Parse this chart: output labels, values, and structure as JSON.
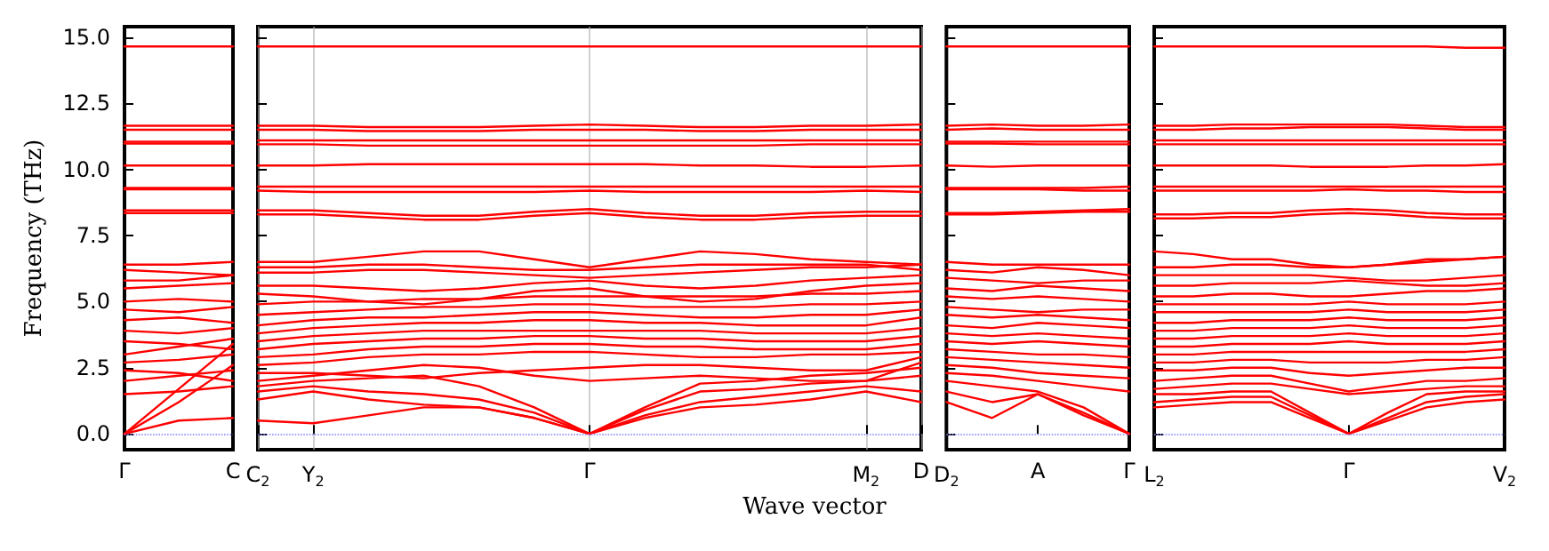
{
  "chart_data": [
    {
      "type": "line",
      "ylabel": "Frequency (THz)",
      "color": "#ff0000",
      "marker": "none",
      "categories": [
        "Γ",
        null,
        "C"
      ],
      "ylim": [
        -0.6,
        15.4
      ],
      "yticks": [
        {
          "value": 0,
          "label": "0.0"
        },
        {
          "value": 2.5,
          "label": "2.5"
        },
        {
          "value": 5,
          "label": "5.0"
        },
        {
          "value": 7.5,
          "label": "7.5"
        },
        {
          "value": 10,
          "label": "10.0"
        },
        {
          "value": 12.5,
          "label": "12.5"
        },
        {
          "value": 15,
          "label": "15.0"
        }
      ],
      "ref_lines": [
        {
          "axis": "y",
          "value": 0,
          "color": "#8080ff",
          "line_style": "dotted"
        }
      ],
      "series": [
        {
          "values": [
            0,
            1.7,
            3.4
          ]
        },
        {
          "values": [
            0,
            1.2,
            2.6
          ]
        },
        {
          "values": [
            0,
            0.5,
            0.6
          ]
        },
        {
          "values": [
            1.5,
            1.6,
            1.8
          ]
        },
        {
          "values": [
            2.0,
            2.2,
            2.4
          ]
        },
        {
          "values": [
            2.4,
            2.3,
            2.0
          ]
        },
        {
          "values": [
            2.7,
            2.8,
            3.0
          ]
        },
        {
          "values": [
            3.0,
            3.3,
            3.6
          ]
        },
        {
          "values": [
            3.5,
            3.4,
            3.2
          ]
        },
        {
          "values": [
            3.9,
            3.8,
            4.0
          ]
        },
        {
          "values": [
            4.3,
            4.4,
            4.2
          ]
        },
        {
          "values": [
            4.7,
            4.6,
            4.8
          ]
        },
        {
          "values": [
            5.0,
            5.1,
            5.0
          ]
        },
        {
          "values": [
            5.5,
            5.6,
            5.7
          ]
        },
        {
          "values": [
            5.8,
            5.8,
            6.0
          ]
        },
        {
          "values": [
            6.2,
            6.1,
            6.0
          ]
        },
        {
          "values": [
            6.4,
            6.4,
            6.5
          ]
        },
        {
          "values": [
            8.45,
            8.45,
            8.45
          ]
        },
        {
          "values": [
            8.35,
            8.35,
            8.35
          ]
        },
        {
          "values": [
            9.3,
            9.3,
            9.3
          ]
        },
        {
          "values": [
            9.25,
            9.25,
            9.25
          ]
        },
        {
          "values": [
            10.15,
            10.15,
            10.15
          ]
        },
        {
          "values": [
            10.98,
            10.98,
            10.98
          ]
        },
        {
          "values": [
            11.05,
            11.05,
            11.05
          ]
        },
        {
          "values": [
            11.5,
            11.5,
            11.5
          ]
        },
        {
          "values": [
            11.65,
            11.65,
            11.65
          ]
        },
        {
          "values": [
            14.65,
            14.65,
            14.65
          ]
        }
      ]
    },
    {
      "type": "line",
      "xlabel": "Wave vector",
      "color": "#ff0000",
      "marker": "none",
      "grid": "x",
      "tick_labels": "x",
      "categories": [
        "C$_{2}$",
        "Y$_{2}$",
        null,
        null,
        null,
        null,
        "Γ",
        null,
        null,
        null,
        null,
        "M$_{2}$",
        "D"
      ],
      "ylim": [
        -0.6,
        15.4
      ],
      "yticks": [
        0,
        2.5,
        5,
        7.5,
        10,
        12.5,
        15
      ],
      "ref_lines": [
        {
          "axis": "y",
          "value": 0,
          "color": "#8080ff",
          "line_style": "dotted"
        }
      ],
      "series": [
        {
          "values": [
            0.5,
            0.4,
            0.7,
            1.0,
            1.0,
            0.6,
            0,
            0.6,
            1.0,
            1.1,
            1.3,
            1.6,
            1.2
          ]
        },
        {
          "values": [
            1.3,
            1.6,
            1.3,
            1.1,
            1.0,
            0.6,
            0,
            0.7,
            1.2,
            1.4,
            1.6,
            1.8,
            1.6
          ]
        },
        {
          "values": [
            1.6,
            1.8,
            1.6,
            1.5,
            1.3,
            0.8,
            0,
            0.9,
            1.6,
            1.7,
            1.9,
            2.0,
            2.2
          ]
        },
        {
          "values": [
            1.8,
            2.0,
            2.1,
            2.2,
            1.8,
            1.0,
            0,
            1.0,
            1.9,
            2.0,
            2.2,
            2.3,
            2.5
          ]
        },
        {
          "values": [
            2.0,
            2.2,
            2.4,
            2.6,
            2.5,
            2.2,
            2.0,
            2.1,
            2.2,
            2.1,
            2.0,
            2.0,
            2.7
          ]
        },
        {
          "values": [
            2.3,
            2.3,
            2.2,
            2.1,
            2.3,
            2.4,
            2.5,
            2.6,
            2.6,
            2.5,
            2.4,
            2.4,
            2.9
          ]
        },
        {
          "values": [
            2.6,
            2.7,
            2.9,
            3.0,
            3.0,
            3.1,
            3.1,
            3.0,
            2.9,
            2.9,
            3.0,
            3.0,
            3.1
          ]
        },
        {
          "values": [
            2.9,
            3.0,
            3.2,
            3.3,
            3.3,
            3.4,
            3.4,
            3.3,
            3.3,
            3.2,
            3.2,
            3.2,
            3.4
          ]
        },
        {
          "values": [
            3.2,
            3.4,
            3.5,
            3.6,
            3.6,
            3.7,
            3.7,
            3.6,
            3.6,
            3.5,
            3.5,
            3.5,
            3.7
          ]
        },
        {
          "values": [
            3.5,
            3.7,
            3.8,
            3.9,
            3.9,
            3.9,
            3.9,
            3.9,
            3.9,
            3.8,
            3.8,
            3.8,
            4.0
          ]
        },
        {
          "values": [
            3.8,
            4.0,
            4.1,
            4.2,
            4.2,
            4.3,
            4.3,
            4.2,
            4.2,
            4.1,
            4.1,
            4.1,
            4.4
          ]
        },
        {
          "values": [
            4.1,
            4.3,
            4.4,
            4.4,
            4.5,
            4.6,
            4.6,
            4.5,
            4.4,
            4.4,
            4.5,
            4.5,
            4.7
          ]
        },
        {
          "values": [
            4.5,
            4.6,
            4.7,
            4.8,
            4.8,
            4.9,
            4.9,
            4.8,
            4.8,
            4.8,
            4.9,
            4.9,
            5.0
          ]
        },
        {
          "values": [
            4.9,
            5.0,
            5.0,
            5.1,
            5.1,
            5.2,
            5.2,
            5.2,
            5.2,
            5.2,
            5.3,
            5.3,
            5.4
          ]
        },
        {
          "values": [
            5.3,
            5.2,
            5.0,
            4.9,
            5.1,
            5.4,
            5.5,
            5.2,
            5.0,
            5.1,
            5.4,
            5.6,
            5.7
          ]
        },
        {
          "values": [
            5.6,
            5.6,
            5.5,
            5.4,
            5.5,
            5.7,
            5.8,
            5.6,
            5.5,
            5.6,
            5.8,
            5.9,
            6.0
          ]
        },
        {
          "values": [
            6.1,
            6.1,
            6.2,
            6.2,
            6.1,
            6.0,
            5.9,
            6.0,
            6.1,
            6.2,
            6.3,
            6.3,
            6.4
          ]
        },
        {
          "values": [
            6.3,
            6.3,
            6.4,
            6.4,
            6.3,
            6.2,
            6.2,
            6.3,
            6.4,
            6.4,
            6.4,
            6.4,
            6.2
          ]
        },
        {
          "values": [
            6.5,
            6.5,
            6.7,
            6.9,
            6.9,
            6.6,
            6.3,
            6.6,
            6.9,
            6.8,
            6.6,
            6.5,
            6.4
          ]
        },
        {
          "values": [
            8.45,
            8.45,
            8.35,
            8.25,
            8.25,
            8.4,
            8.5,
            8.35,
            8.25,
            8.25,
            8.35,
            8.4,
            8.4
          ]
        },
        {
          "values": [
            8.3,
            8.3,
            8.2,
            8.1,
            8.1,
            8.25,
            8.35,
            8.2,
            8.1,
            8.1,
            8.2,
            8.25,
            8.25
          ]
        },
        {
          "values": [
            9.35,
            9.35,
            9.35,
            9.35,
            9.35,
            9.35,
            9.35,
            9.35,
            9.35,
            9.35,
            9.35,
            9.35,
            9.35
          ]
        },
        {
          "values": [
            9.2,
            9.15,
            9.15,
            9.15,
            9.15,
            9.15,
            9.2,
            9.15,
            9.15,
            9.15,
            9.15,
            9.2,
            9.15
          ]
        },
        {
          "values": [
            10.15,
            10.15,
            10.2,
            10.2,
            10.2,
            10.2,
            10.2,
            10.2,
            10.15,
            10.15,
            10.1,
            10.1,
            10.15
          ]
        },
        {
          "values": [
            10.95,
            10.95,
            10.9,
            10.9,
            10.9,
            10.9,
            10.9,
            10.9,
            10.9,
            10.9,
            10.95,
            10.95,
            10.95
          ]
        },
        {
          "values": [
            11.1,
            11.1,
            11.1,
            11.1,
            11.1,
            11.1,
            11.1,
            11.1,
            11.1,
            11.1,
            11.1,
            11.1,
            11.1
          ]
        },
        {
          "values": [
            11.5,
            11.5,
            11.45,
            11.45,
            11.45,
            11.5,
            11.5,
            11.5,
            11.45,
            11.45,
            11.5,
            11.5,
            11.5
          ]
        },
        {
          "values": [
            11.65,
            11.65,
            11.6,
            11.6,
            11.6,
            11.65,
            11.7,
            11.65,
            11.6,
            11.6,
            11.65,
            11.65,
            11.7
          ]
        },
        {
          "values": [
            14.65,
            14.65,
            14.65,
            14.65,
            14.65,
            14.65,
            14.65,
            14.65,
            14.65,
            14.65,
            14.65,
            14.65,
            14.65
          ]
        }
      ]
    },
    {
      "type": "line",
      "color": "#ff0000",
      "marker": "none",
      "tick_labels": "x",
      "categories": [
        "D$_{2}$",
        null,
        "A",
        null,
        "Γ"
      ],
      "ylim": [
        -0.6,
        15.4
      ],
      "yticks": [
        0,
        2.5,
        5,
        7.5,
        10,
        12.5,
        15
      ],
      "ref_lines": [
        {
          "axis": "y",
          "value": 0,
          "color": "#8080ff",
          "line_style": "dotted"
        }
      ],
      "series": [
        {
          "values": [
            1.2,
            0.6,
            1.5,
            0.7,
            0
          ]
        },
        {
          "values": [
            1.6,
            1.2,
            1.5,
            0.8,
            0
          ]
        },
        {
          "values": [
            2.0,
            1.8,
            1.6,
            1.0,
            0
          ]
        },
        {
          "values": [
            2.3,
            2.2,
            2.0,
            1.8,
            1.6
          ]
        },
        {
          "values": [
            2.6,
            2.5,
            2.3,
            2.2,
            2.1
          ]
        },
        {
          "values": [
            2.9,
            2.8,
            2.7,
            2.6,
            2.5
          ]
        },
        {
          "values": [
            3.2,
            3.1,
            3.0,
            3.0,
            2.9
          ]
        },
        {
          "values": [
            3.5,
            3.4,
            3.5,
            3.4,
            3.3
          ]
        },
        {
          "values": [
            3.8,
            3.7,
            3.8,
            3.7,
            3.6
          ]
        },
        {
          "values": [
            4.1,
            4.0,
            4.2,
            4.1,
            4.0
          ]
        },
        {
          "values": [
            4.5,
            4.4,
            4.5,
            4.4,
            4.3
          ]
        },
        {
          "values": [
            4.8,
            4.7,
            4.6,
            4.7,
            4.7
          ]
        },
        {
          "values": [
            5.2,
            5.1,
            5.2,
            5.1,
            5.0
          ]
        },
        {
          "values": [
            5.5,
            5.4,
            5.6,
            5.5,
            5.4
          ]
        },
        {
          "values": [
            5.9,
            5.8,
            5.7,
            5.8,
            5.8
          ]
        },
        {
          "values": [
            6.2,
            6.1,
            6.3,
            6.2,
            6.0
          ]
        },
        {
          "values": [
            6.5,
            6.4,
            6.4,
            6.4,
            6.4
          ]
        },
        {
          "values": [
            8.35,
            8.35,
            8.4,
            8.45,
            8.5
          ]
        },
        {
          "values": [
            8.3,
            8.3,
            8.35,
            8.4,
            8.4
          ]
        },
        {
          "values": [
            9.3,
            9.3,
            9.3,
            9.3,
            9.35
          ]
        },
        {
          "values": [
            9.25,
            9.25,
            9.25,
            9.2,
            9.2
          ]
        },
        {
          "values": [
            10.15,
            10.1,
            10.15,
            10.15,
            10.15
          ]
        },
        {
          "values": [
            10.98,
            10.98,
            10.95,
            10.95,
            10.95
          ]
        },
        {
          "values": [
            11.05,
            11.05,
            11.05,
            11.05,
            11.05
          ]
        },
        {
          "values": [
            11.5,
            11.55,
            11.5,
            11.5,
            11.5
          ]
        },
        {
          "values": [
            11.65,
            11.7,
            11.65,
            11.65,
            11.7
          ]
        },
        {
          "values": [
            14.65,
            14.65,
            14.65,
            14.65,
            14.65
          ]
        }
      ]
    },
    {
      "type": "line",
      "color": "#ff0000",
      "marker": "none",
      "tick_labels": "x",
      "categories": [
        "L$_{2}$",
        null,
        null,
        null,
        null,
        "Γ",
        null,
        null,
        null,
        "V$_{2}$"
      ],
      "ylim": [
        -0.6,
        15.4
      ],
      "yticks": [
        0,
        2.5,
        5,
        7.5,
        10,
        12.5,
        15
      ],
      "ref_lines": [
        {
          "axis": "y",
          "value": 0,
          "color": "#8080ff",
          "line_style": "dotted"
        }
      ],
      "series": [
        {
          "values": [
            1.0,
            1.1,
            1.2,
            1.2,
            0.6,
            0,
            0.5,
            1.0,
            1.2,
            1.3
          ]
        },
        {
          "values": [
            1.2,
            1.3,
            1.4,
            1.4,
            0.7,
            0,
            0.6,
            1.2,
            1.4,
            1.5
          ]
        },
        {
          "values": [
            1.5,
            1.5,
            1.6,
            1.6,
            0.8,
            0,
            0.8,
            1.5,
            1.6,
            1.6
          ]
        },
        {
          "values": [
            1.7,
            1.8,
            1.9,
            1.9,
            1.7,
            1.5,
            1.6,
            1.7,
            1.8,
            1.8
          ]
        },
        {
          "values": [
            2.0,
            2.1,
            2.2,
            2.2,
            1.9,
            1.6,
            1.8,
            2.0,
            2.0,
            2.1
          ]
        },
        {
          "values": [
            2.4,
            2.4,
            2.5,
            2.5,
            2.3,
            2.2,
            2.3,
            2.4,
            2.5,
            2.5
          ]
        },
        {
          "values": [
            2.7,
            2.7,
            2.8,
            2.8,
            2.7,
            2.7,
            2.7,
            2.8,
            2.8,
            2.9
          ]
        },
        {
          "values": [
            3.0,
            3.0,
            3.1,
            3.1,
            3.1,
            3.1,
            3.1,
            3.1,
            3.1,
            3.2
          ]
        },
        {
          "values": [
            3.3,
            3.3,
            3.4,
            3.4,
            3.4,
            3.5,
            3.4,
            3.4,
            3.4,
            3.5
          ]
        },
        {
          "values": [
            3.6,
            3.6,
            3.7,
            3.7,
            3.7,
            3.8,
            3.7,
            3.7,
            3.7,
            3.8
          ]
        },
        {
          "values": [
            3.9,
            3.9,
            4.0,
            4.0,
            4.0,
            4.1,
            4.0,
            4.0,
            4.0,
            4.1
          ]
        },
        {
          "values": [
            4.2,
            4.2,
            4.3,
            4.3,
            4.3,
            4.4,
            4.3,
            4.3,
            4.3,
            4.4
          ]
        },
        {
          "values": [
            4.6,
            4.6,
            4.6,
            4.6,
            4.6,
            4.7,
            4.6,
            4.6,
            4.6,
            4.7
          ]
        },
        {
          "values": [
            4.9,
            4.9,
            4.9,
            4.9,
            4.9,
            5.0,
            4.9,
            4.9,
            4.9,
            5.0
          ]
        },
        {
          "values": [
            5.2,
            5.2,
            5.3,
            5.3,
            5.2,
            5.2,
            5.3,
            5.4,
            5.4,
            5.5
          ]
        },
        {
          "values": [
            5.6,
            5.6,
            5.7,
            5.7,
            5.7,
            5.8,
            5.7,
            5.6,
            5.6,
            5.7
          ]
        },
        {
          "values": [
            6.0,
            6.0,
            6.0,
            6.0,
            6.0,
            5.9,
            5.8,
            5.8,
            5.9,
            6.0
          ]
        },
        {
          "values": [
            6.3,
            6.3,
            6.4,
            6.4,
            6.3,
            6.3,
            6.4,
            6.5,
            6.6,
            6.7
          ]
        },
        {
          "values": [
            6.9,
            6.8,
            6.6,
            6.6,
            6.4,
            6.3,
            6.4,
            6.6,
            6.6,
            6.7
          ]
        },
        {
          "values": [
            8.3,
            8.3,
            8.35,
            8.35,
            8.45,
            8.5,
            8.45,
            8.35,
            8.3,
            8.3
          ]
        },
        {
          "values": [
            8.15,
            8.15,
            8.2,
            8.2,
            8.3,
            8.35,
            8.3,
            8.2,
            8.15,
            8.15
          ]
        },
        {
          "values": [
            9.35,
            9.35,
            9.35,
            9.35,
            9.35,
            9.35,
            9.35,
            9.35,
            9.35,
            9.35
          ]
        },
        {
          "values": [
            9.2,
            9.2,
            9.2,
            9.2,
            9.2,
            9.25,
            9.2,
            9.2,
            9.15,
            9.15
          ]
        },
        {
          "values": [
            10.15,
            10.15,
            10.15,
            10.15,
            10.1,
            10.1,
            10.1,
            10.15,
            10.15,
            10.2
          ]
        },
        {
          "values": [
            10.95,
            10.95,
            10.95,
            10.95,
            10.95,
            10.95,
            10.95,
            10.95,
            10.95,
            10.95
          ]
        },
        {
          "values": [
            11.1,
            11.1,
            11.1,
            11.1,
            11.1,
            11.1,
            11.1,
            11.1,
            11.1,
            11.1
          ]
        },
        {
          "values": [
            11.5,
            11.5,
            11.55,
            11.55,
            11.6,
            11.6,
            11.6,
            11.55,
            11.5,
            11.5
          ]
        },
        {
          "values": [
            11.65,
            11.65,
            11.7,
            11.7,
            11.7,
            11.7,
            11.7,
            11.65,
            11.6,
            11.6
          ]
        },
        {
          "values": [
            14.65,
            14.65,
            14.65,
            14.65,
            14.65,
            14.65,
            14.65,
            14.65,
            14.6,
            14.6
          ]
        }
      ]
    }
  ]
}
